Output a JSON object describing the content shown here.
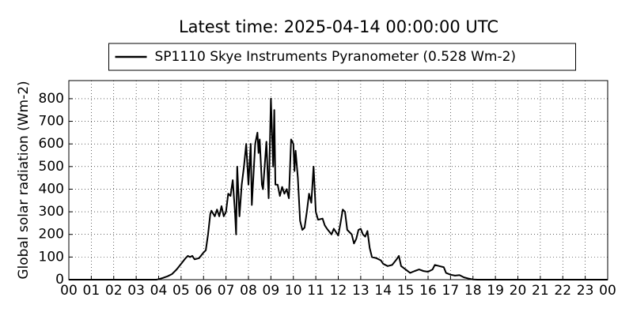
{
  "chart_data": {
    "type": "line",
    "title": "Latest time: 2025-04-14 00:00:00 UTC",
    "ylabel": "Global solar radiation (Wm-2)",
    "x": [
      0,
      3.9,
      4.0,
      4.2,
      4.4,
      4.6,
      4.8,
      5.0,
      5.2,
      5.3,
      5.4,
      5.5,
      5.6,
      5.8,
      6.0,
      6.1,
      6.2,
      6.3,
      6.35,
      6.5,
      6.6,
      6.7,
      6.8,
      6.9,
      7.0,
      7.1,
      7.2,
      7.3,
      7.4,
      7.45,
      7.5,
      7.6,
      7.7,
      7.8,
      7.9,
      8.0,
      8.1,
      8.15,
      8.3,
      8.4,
      8.45,
      8.5,
      8.6,
      8.65,
      8.8,
      8.9,
      9.0,
      9.1,
      9.15,
      9.2,
      9.3,
      9.4,
      9.5,
      9.6,
      9.7,
      9.8,
      9.9,
      10.0,
      10.05,
      10.1,
      10.2,
      10.3,
      10.4,
      10.5,
      10.6,
      10.7,
      10.8,
      10.9,
      11.0,
      11.1,
      11.3,
      11.4,
      11.5,
      11.7,
      11.8,
      12.0,
      12.1,
      12.2,
      12.3,
      12.4,
      12.5,
      12.6,
      12.7,
      12.8,
      12.9,
      13.0,
      13.1,
      13.2,
      13.3,
      13.4,
      13.5,
      13.7,
      13.9,
      14.0,
      14.2,
      14.4,
      14.6,
      14.7,
      14.8,
      15.0,
      15.2,
      15.4,
      15.6,
      15.8,
      16.0,
      16.2,
      16.3,
      16.5,
      16.7,
      16.8,
      17.0,
      17.2,
      17.4,
      17.6,
      17.8,
      18.0,
      18.2,
      24
    ],
    "series": [
      {
        "name": "SP1110 Skye Instruments Pyranometer (0.528 Wm-2)",
        "color": "#000000",
        "values": [
          0,
          0,
          2,
          8,
          15,
          25,
          45,
          70,
          95,
          105,
          100,
          105,
          90,
          95,
          120,
          130,
          200,
          290,
          305,
          280,
          310,
          280,
          325,
          280,
          300,
          380,
          370,
          440,
          300,
          200,
          500,
          280,
          420,
          500,
          600,
          420,
          600,
          330,
          600,
          650,
          560,
          620,
          420,
          400,
          610,
          360,
          800,
          500,
          750,
          420,
          420,
          370,
          410,
          380,
          400,
          360,
          620,
          600,
          480,
          570,
          450,
          260,
          220,
          230,
          300,
          380,
          340,
          500,
          300,
          265,
          270,
          240,
          225,
          200,
          225,
          195,
          250,
          310,
          300,
          220,
          210,
          200,
          160,
          180,
          220,
          225,
          200,
          190,
          215,
          140,
          100,
          95,
          85,
          70,
          60,
          65,
          90,
          105,
          60,
          45,
          30,
          38,
          45,
          38,
          35,
          45,
          65,
          60,
          55,
          30,
          22,
          18,
          20,
          10,
          5,
          1,
          0,
          0
        ]
      }
    ],
    "xlim": [
      0,
      24
    ],
    "ylim": [
      0,
      880
    ],
    "xticks": [
      {
        "value": 0,
        "label": "00"
      },
      {
        "value": 1,
        "label": "01"
      },
      {
        "value": 2,
        "label": "02"
      },
      {
        "value": 3,
        "label": "03"
      },
      {
        "value": 4,
        "label": "04"
      },
      {
        "value": 5,
        "label": "05"
      },
      {
        "value": 6,
        "label": "06"
      },
      {
        "value": 7,
        "label": "07"
      },
      {
        "value": 8,
        "label": "08"
      },
      {
        "value": 9,
        "label": "09"
      },
      10,
      11,
      12,
      13,
      14,
      15,
      16,
      17,
      18,
      19,
      20,
      21,
      22,
      23,
      {
        "value": 24,
        "label": "00"
      }
    ],
    "yticks": [
      0,
      100,
      200,
      300,
      400,
      500,
      600,
      700,
      800
    ],
    "grid": true,
    "legend": "upper center"
  }
}
